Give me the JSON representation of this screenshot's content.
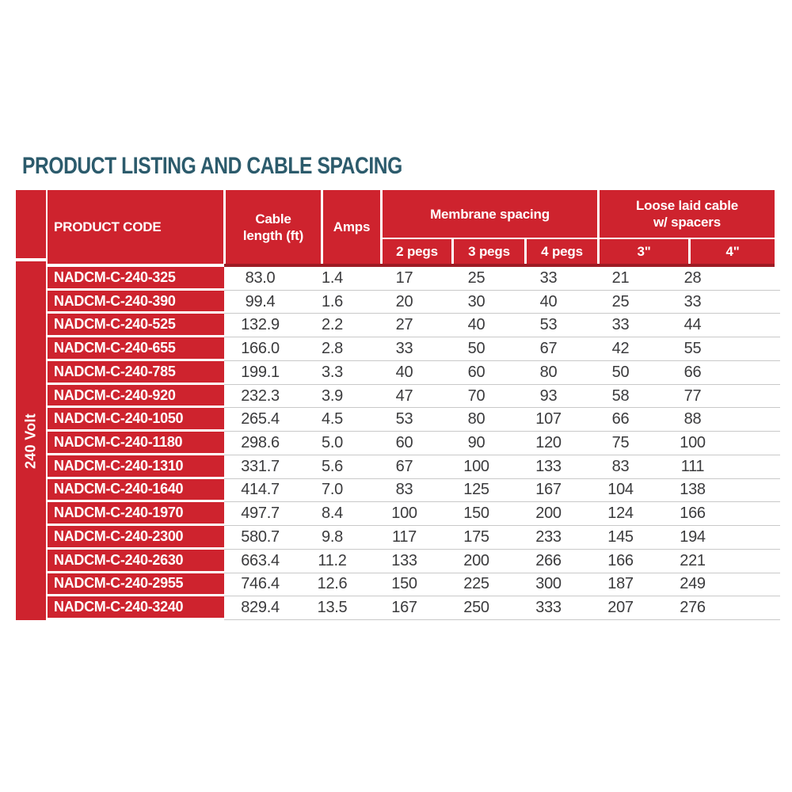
{
  "title": "PRODUCT LISTING AND CABLE SPACING",
  "colors": {
    "table_red": "#CE232E",
    "header_shadow_red": "#9E1B24",
    "title_teal": "#2C5B6C",
    "body_text": "#3B3B3D",
    "row_divider": "#C9C9C9",
    "header_text": "#FFFFFF"
  },
  "table": {
    "voltage_label": "240 Volt",
    "headers": {
      "product_code": "PRODUCT CODE",
      "cable_length_line1": "Cable",
      "cable_length_line2": "length (ft)",
      "amps": "Amps",
      "membrane_spacing": "Membrane spacing",
      "peg_columns": [
        "2 pegs",
        "3 pegs",
        "4 pegs"
      ],
      "loose_laid_line1": "Loose laid cable",
      "loose_laid_line2": "w/ spacers",
      "spacer_columns": [
        "3\"",
        "4\""
      ]
    },
    "rows": [
      [
        "NADCM-C-240-325",
        "83.0",
        "1.4",
        "17",
        "25",
        "33",
        "21",
        "28"
      ],
      [
        "NADCM-C-240-390",
        "99.4",
        "1.6",
        "20",
        "30",
        "40",
        "25",
        "33"
      ],
      [
        "NADCM-C-240-525",
        "132.9",
        "2.2",
        "27",
        "40",
        "53",
        "33",
        "44"
      ],
      [
        "NADCM-C-240-655",
        "166.0",
        "2.8",
        "33",
        "50",
        "67",
        "42",
        "55"
      ],
      [
        "NADCM-C-240-785",
        "199.1",
        "3.3",
        "40",
        "60",
        "80",
        "50",
        "66"
      ],
      [
        "NADCM-C-240-920",
        "232.3",
        "3.9",
        "47",
        "70",
        "93",
        "58",
        "77"
      ],
      [
        "NADCM-C-240-1050",
        "265.4",
        "4.5",
        "53",
        "80",
        "107",
        "66",
        "88"
      ],
      [
        "NADCM-C-240-1180",
        "298.6",
        "5.0",
        "60",
        "90",
        "120",
        "75",
        "100"
      ],
      [
        "NADCM-C-240-1310",
        "331.7",
        "5.6",
        "67",
        "100",
        "133",
        "83",
        "111"
      ],
      [
        "NADCM-C-240-1640",
        "414.7",
        "7.0",
        "83",
        "125",
        "167",
        "104",
        "138"
      ],
      [
        "NADCM-C-240-1970",
        "497.7",
        "8.4",
        "100",
        "150",
        "200",
        "124",
        "166"
      ],
      [
        "NADCM-C-240-2300",
        "580.7",
        "9.8",
        "117",
        "175",
        "233",
        "145",
        "194"
      ],
      [
        "NADCM-C-240-2630",
        "663.4",
        "11.2",
        "133",
        "200",
        "266",
        "166",
        "221"
      ],
      [
        "NADCM-C-240-2955",
        "746.4",
        "12.6",
        "150",
        "225",
        "300",
        "187",
        "249"
      ],
      [
        "NADCM-C-240-3240",
        "829.4",
        "13.5",
        "167",
        "250",
        "333",
        "207",
        "276"
      ]
    ]
  }
}
